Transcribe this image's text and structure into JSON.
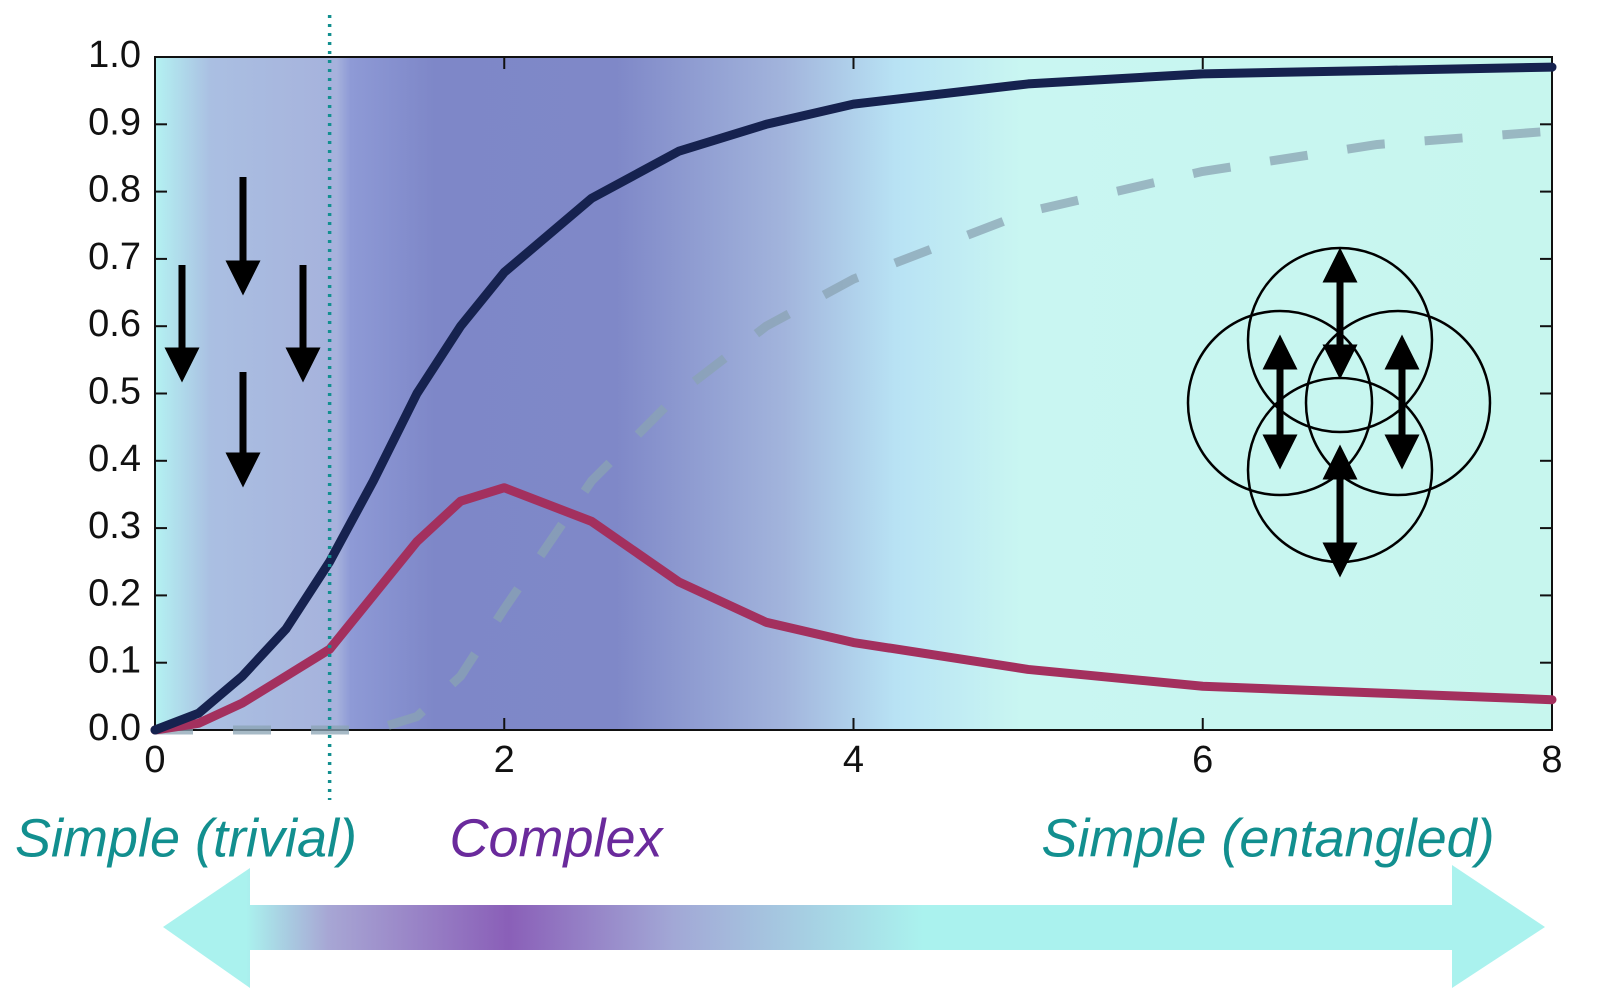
{
  "chart_data": {
    "type": "line",
    "x": [
      0,
      0.25,
      0.5,
      0.75,
      1,
      1.25,
      1.5,
      1.75,
      2,
      2.5,
      3,
      3.5,
      4,
      5,
      6,
      7,
      8
    ],
    "series": [
      {
        "color": "#16224f",
        "style": "solid",
        "values": [
          0,
          0.025,
          0.08,
          0.15,
          0.25,
          0.37,
          0.5,
          0.6,
          0.68,
          0.79,
          0.86,
          0.9,
          0.93,
          0.96,
          0.975,
          0.98,
          0.985
        ]
      },
      {
        "color": "#a3305e",
        "style": "solid",
        "values": [
          0,
          0.01,
          0.04,
          0.08,
          0.12,
          0.2,
          0.28,
          0.34,
          0.36,
          0.31,
          0.22,
          0.16,
          0.13,
          0.09,
          0.065,
          0.055,
          0.045
        ]
      },
      {
        "color": "#8aa3b3",
        "style": "dashed",
        "values": [
          0,
          0,
          0,
          0,
          0,
          0,
          0.02,
          0.08,
          0.18,
          0.37,
          0.5,
          0.6,
          0.67,
          0.77,
          0.83,
          0.87,
          0.89
        ]
      }
    ],
    "xlim": [
      0,
      8
    ],
    "xticks": [
      0,
      2,
      4,
      6,
      8
    ],
    "ylim": [
      0,
      1
    ],
    "yticks": [
      {
        "value": 0,
        "label": "0.0"
      },
      0.1,
      0.2,
      0.3,
      0.4,
      0.5,
      0.6,
      0.7,
      0.8,
      0.9,
      {
        "value": 1,
        "label": "1.0"
      }
    ],
    "vline": 1,
    "regions": [
      {
        "label": "Simple (trivial)",
        "color": "#128f8f"
      },
      {
        "label": "Complex",
        "color": "#6a2a9c"
      },
      {
        "label": "Simple (entangled)",
        "color": "#128f8f"
      }
    ]
  }
}
